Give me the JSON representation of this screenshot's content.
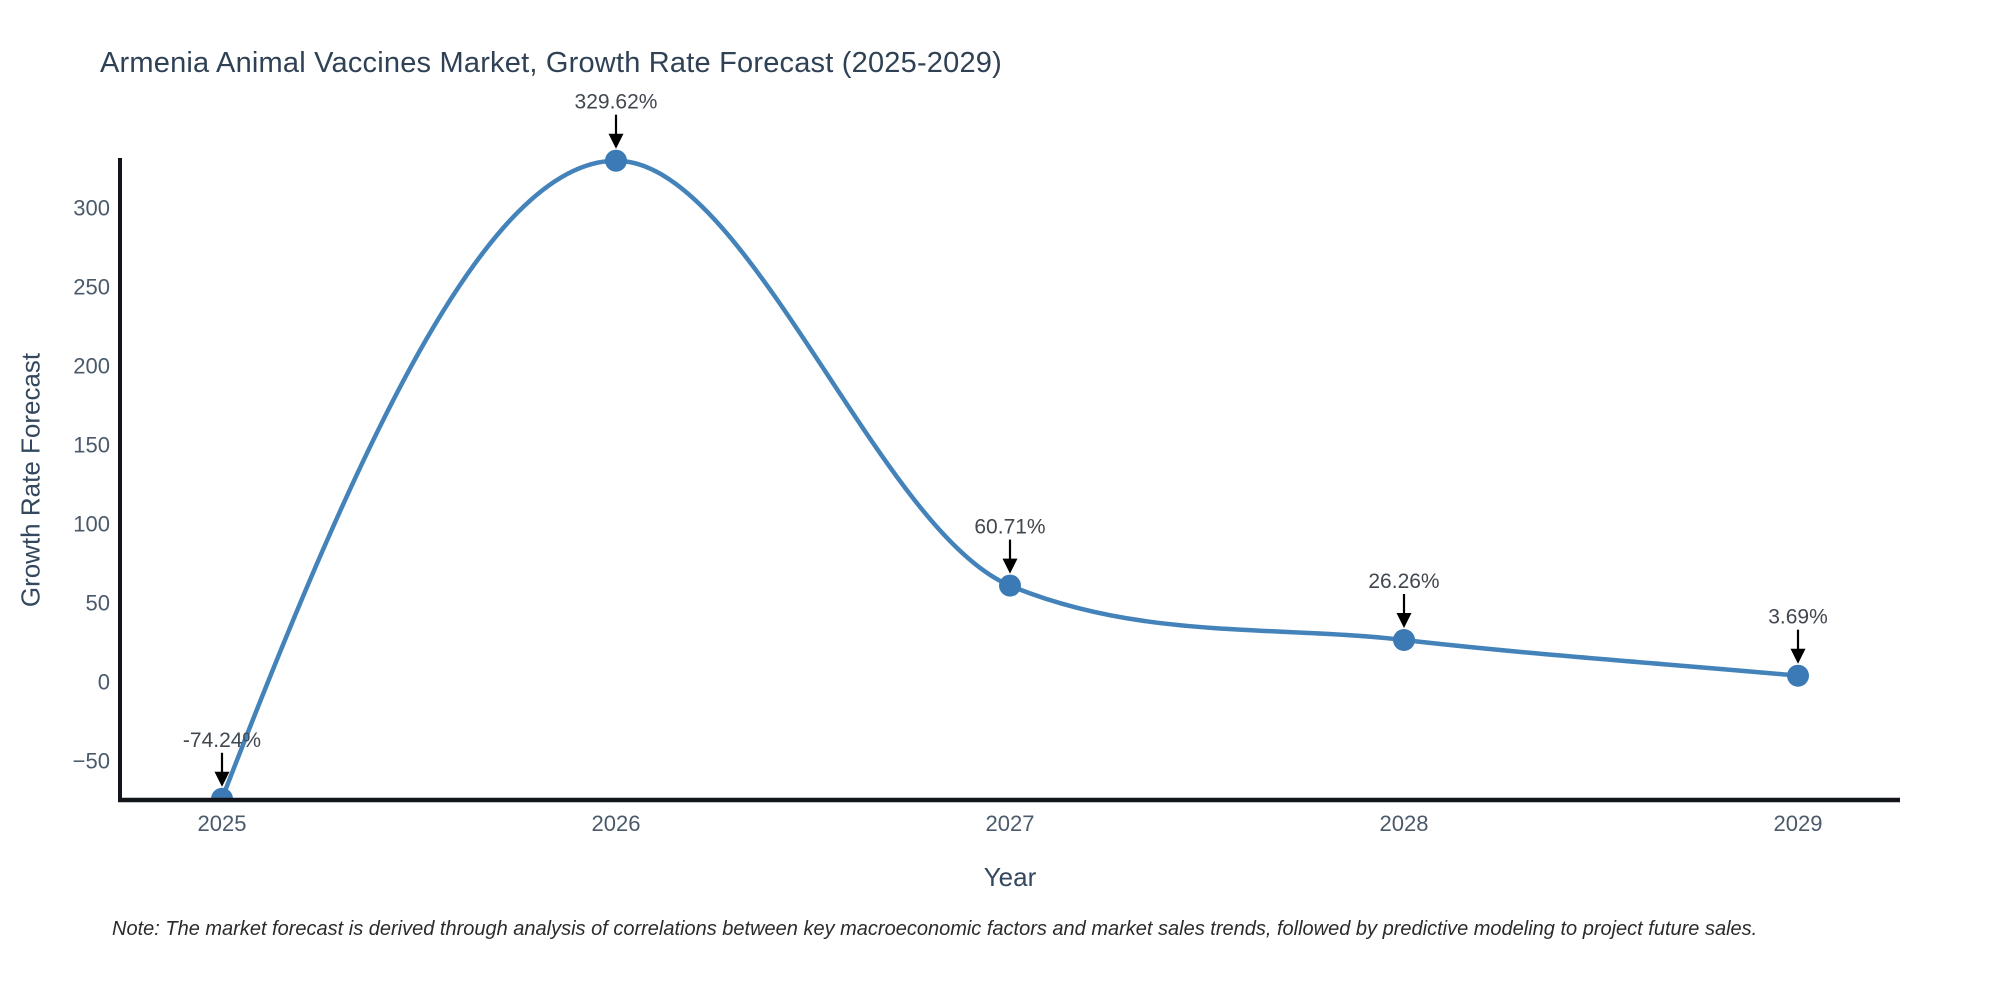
{
  "chart_data": {
    "type": "line",
    "title": "Armenia Animal Vaccines Market, Growth Rate Forecast (2025-2029)",
    "xlabel": "Year",
    "ylabel": "Growth Rate Forecast",
    "x": [
      "2025",
      "2026",
      "2027",
      "2028",
      "2029"
    ],
    "series": [
      {
        "name": "Growth Rate Forecast",
        "values": [
          -74.24,
          329.62,
          60.71,
          26.26,
          3.69
        ],
        "point_labels": [
          "-74.24%",
          "329.62%",
          "60.71%",
          "26.26%",
          "3.69%"
        ]
      }
    ],
    "yticks": [
      300,
      250,
      200,
      150,
      100,
      50,
      0,
      -50
    ],
    "ylim": [
      -75,
      331
    ],
    "grid": false,
    "legend_position": "none",
    "line_shape": "spline",
    "annotation_style": "value label with downward arrow at each point",
    "colors": {
      "line": "#4383b9",
      "marker": "#3b7ab4",
      "axis": "#111418",
      "annotation_arrow": "#000000",
      "annotation_text": "#40474f",
      "tick_text": "#4b5a6b",
      "background": "#ffffff"
    }
  },
  "footnote": "Note: The market forecast is derived through analysis of correlations between key macroeconomic factors and market sales trends, followed by predictive modeling to project future sales."
}
